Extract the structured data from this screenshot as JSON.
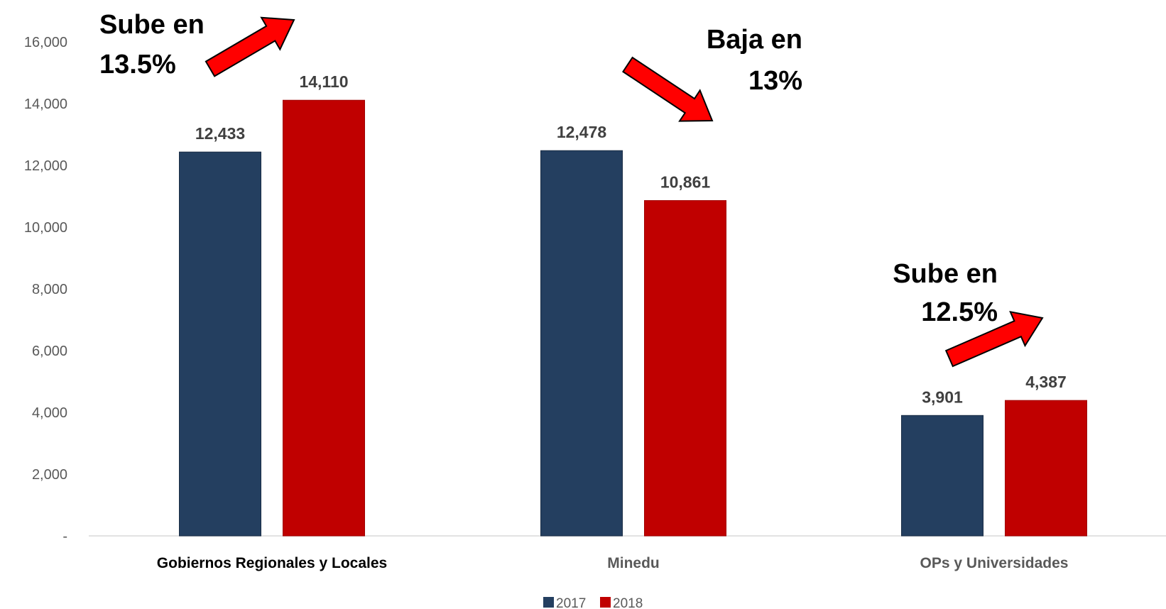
{
  "chart_data": {
    "type": "bar",
    "categories": [
      "Gobiernos Regionales y Locales",
      "Minedu",
      "OPs y Universidades"
    ],
    "series": [
      {
        "name": "2017",
        "values": [
          12433,
          12478,
          3901
        ],
        "color": "#243F60"
      },
      {
        "name": "2018",
        "values": [
          14110,
          10861,
          4387
        ],
        "color": "#C00000"
      }
    ],
    "data_labels": [
      [
        "12,433",
        "12,478",
        "3,901"
      ],
      [
        "14,110",
        "10,861",
        "4,387"
      ]
    ],
    "y_ticks": [
      "-",
      "2,000",
      "4,000",
      "6,000",
      "8,000",
      "10,000",
      "12,000",
      "14,000",
      "16,000"
    ],
    "ylim": [
      0,
      16000
    ],
    "grid": false,
    "legend": "bottom",
    "annotations": [
      {
        "lines": [
          "Sube en",
          "13.5%"
        ],
        "direction": "up",
        "category": "Gobiernos Regionales y Locales"
      },
      {
        "lines": [
          "Baja en",
          "13%"
        ],
        "direction": "down",
        "category": "Minedu"
      },
      {
        "lines": [
          "Sube en",
          "12.5%"
        ],
        "direction": "up",
        "category": "OPs y Universidades"
      }
    ],
    "title": "",
    "xlabel": "",
    "ylabel": ""
  },
  "colors": {
    "arrow_fill": "#FF0000",
    "axis": "#D9D9D9"
  }
}
